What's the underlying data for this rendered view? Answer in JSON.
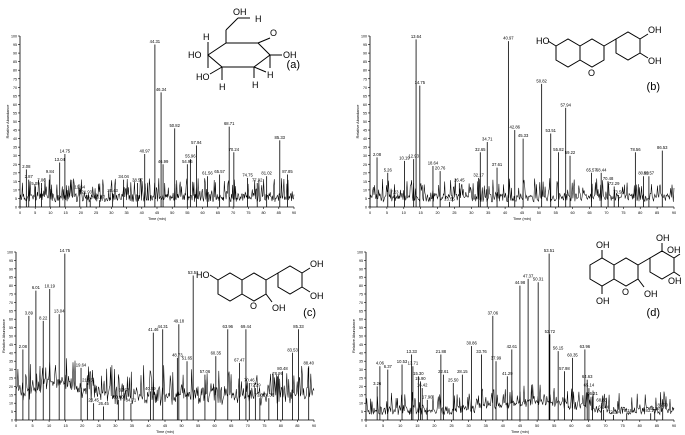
{
  "figure": {
    "panel_labels": [
      "(a)",
      "(b)",
      "(c)",
      "(d)"
    ],
    "ylabel": "Relative Abundance",
    "xlabel": "Time (min)"
  },
  "chart_data": [
    {
      "type": "line",
      "panel": "(a)",
      "xlabel": "Time (min)",
      "ylabel": "Relative Abundance",
      "xlim": [
        0,
        90
      ],
      "ylim": [
        0,
        100
      ],
      "xticks": [
        0,
        5,
        10,
        15,
        20,
        25,
        30,
        35,
        40,
        45,
        50,
        55,
        60,
        65,
        70,
        75,
        80,
        85,
        90
      ],
      "yticks": [
        0,
        5,
        10,
        15,
        20,
        25,
        30,
        35,
        40,
        45,
        50,
        55,
        60,
        65,
        70,
        75,
        80,
        85,
        90,
        95,
        100
      ],
      "peaks": [
        {
          "x": 2.08,
          "y": 22,
          "label": "2.08"
        },
        {
          "x": 2.87,
          "y": 16,
          "label": "2.87"
        },
        {
          "x": 5.09,
          "y": 12,
          "label": "5.09"
        },
        {
          "x": 7.06,
          "y": 14,
          "label": "7.06"
        },
        {
          "x": 9.84,
          "y": 19,
          "label": "9.84"
        },
        {
          "x": 13.04,
          "y": 26,
          "label": "13.04"
        },
        {
          "x": 14.75,
          "y": 31,
          "label": "14.75"
        },
        {
          "x": 19.64,
          "y": 10,
          "label": "19.64"
        },
        {
          "x": 21.93,
          "y": 7,
          "label": "21.93"
        },
        {
          "x": 23.06,
          "y": 4,
          "label": "23.06"
        },
        {
          "x": 26.17,
          "y": 4,
          "label": "26.17"
        },
        {
          "x": 30.43,
          "y": 8,
          "label": "30.43"
        },
        {
          "x": 34.04,
          "y": 16,
          "label": "34.04"
        },
        {
          "x": 38.57,
          "y": 14,
          "label": "38.57"
        },
        {
          "x": 40.97,
          "y": 31,
          "label": "40.97"
        },
        {
          "x": 44.31,
          "y": 95,
          "label": "44.31"
        },
        {
          "x": 46.34,
          "y": 67,
          "label": "46.34"
        },
        {
          "x": 46.99,
          "y": 25,
          "label": "46.99"
        },
        {
          "x": 50.82,
          "y": 46,
          "label": "50.82"
        },
        {
          "x": 54.96,
          "y": 25,
          "label": "54.96"
        },
        {
          "x": 55.96,
          "y": 28,
          "label": "55.96"
        },
        {
          "x": 57.94,
          "y": 36,
          "label": "57.94"
        },
        {
          "x": 61.56,
          "y": 18,
          "label": "61.56"
        },
        {
          "x": 65.57,
          "y": 19,
          "label": "65.57"
        },
        {
          "x": 68.71,
          "y": 47,
          "label": "68.71"
        },
        {
          "x": 70.24,
          "y": 32,
          "label": "70.24"
        },
        {
          "x": 74.75,
          "y": 17,
          "label": "74.75"
        },
        {
          "x": 77.92,
          "y": 14,
          "label": "77.92"
        },
        {
          "x": 81.02,
          "y": 18,
          "label": "81.02"
        },
        {
          "x": 85.33,
          "y": 39,
          "label": "85.33"
        },
        {
          "x": 87.85,
          "y": 19,
          "label": "87.85"
        }
      ]
    },
    {
      "type": "line",
      "panel": "(b)",
      "xlabel": "Time (min)",
      "ylabel": "Relative Abundance",
      "xlim": [
        0,
        90
      ],
      "ylim": [
        0,
        100
      ],
      "xticks": [
        0,
        5,
        10,
        15,
        20,
        25,
        30,
        35,
        40,
        45,
        50,
        55,
        60,
        65,
        70,
        75,
        80,
        85,
        90
      ],
      "yticks": [
        0,
        5,
        10,
        15,
        20,
        25,
        30,
        35,
        40,
        45,
        50,
        55,
        60,
        65,
        70,
        75,
        80,
        85,
        90,
        95,
        100
      ],
      "peaks": [
        {
          "x": 2.08,
          "y": 29,
          "label": "2.08"
        },
        {
          "x": 5.26,
          "y": 20,
          "label": "5.26"
        },
        {
          "x": 7.23,
          "y": 7,
          "label": "7.23"
        },
        {
          "x": 10.19,
          "y": 27,
          "label": "10.19"
        },
        {
          "x": 12.93,
          "y": 28,
          "label": "12.93"
        },
        {
          "x": 13.64,
          "y": 98,
          "label": "13.64"
        },
        {
          "x": 14.75,
          "y": 71,
          "label": "14.75"
        },
        {
          "x": 18.64,
          "y": 24,
          "label": "18.64"
        },
        {
          "x": 20.76,
          "y": 21,
          "label": "20.76"
        },
        {
          "x": 23.55,
          "y": 3,
          "label": "23.55"
        },
        {
          "x": 26.45,
          "y": 14,
          "label": "26.45"
        },
        {
          "x": 32.17,
          "y": 17,
          "label": "32.17"
        },
        {
          "x": 32.65,
          "y": 32,
          "label": "32.65"
        },
        {
          "x": 34.71,
          "y": 38,
          "label": "34.71"
        },
        {
          "x": 37.61,
          "y": 23,
          "label": "37.61"
        },
        {
          "x": 40.97,
          "y": 97,
          "label": "40.97"
        },
        {
          "x": 42.86,
          "y": 45,
          "label": "42.86"
        },
        {
          "x": 45.33,
          "y": 40,
          "label": "45.33"
        },
        {
          "x": 50.82,
          "y": 72,
          "label": "50.82"
        },
        {
          "x": 53.51,
          "y": 43,
          "label": "53.51"
        },
        {
          "x": 55.82,
          "y": 32,
          "label": "55.82"
        },
        {
          "x": 57.94,
          "y": 58,
          "label": "57.94"
        },
        {
          "x": 59.22,
          "y": 30,
          "label": "59.22"
        },
        {
          "x": 65.57,
          "y": 20,
          "label": "65.57"
        },
        {
          "x": 68.44,
          "y": 20,
          "label": "68.44"
        },
        {
          "x": 70.48,
          "y": 15,
          "label": "70.48"
        },
        {
          "x": 72.29,
          "y": 12,
          "label": "72.29"
        },
        {
          "x": 73.56,
          "y": 7,
          "label": "73.56"
        },
        {
          "x": 78.56,
          "y": 32,
          "label": "78.56"
        },
        {
          "x": 80.99,
          "y": 18,
          "label": "80.99"
        },
        {
          "x": 82.57,
          "y": 18,
          "label": "82.57"
        },
        {
          "x": 86.53,
          "y": 33,
          "label": "86.53"
        }
      ]
    },
    {
      "type": "line",
      "panel": "(c)",
      "xlabel": "Time (min)",
      "ylabel": "Relative Abundance",
      "xlim": [
        0,
        90
      ],
      "ylim": [
        0,
        100
      ],
      "xticks": [
        0,
        5,
        10,
        15,
        20,
        25,
        30,
        35,
        40,
        45,
        50,
        55,
        60,
        65,
        70,
        75,
        80,
        85,
        90
      ],
      "yticks": [
        0,
        5,
        10,
        15,
        20,
        25,
        30,
        35,
        40,
        45,
        50,
        55,
        60,
        65,
        70,
        75,
        80,
        85,
        90,
        95,
        100
      ],
      "peaks": [
        {
          "x": 2.08,
          "y": 42,
          "label": "2.08"
        },
        {
          "x": 3.89,
          "y": 62,
          "label": "3.89"
        },
        {
          "x": 6.01,
          "y": 77,
          "label": "6.01"
        },
        {
          "x": 8.22,
          "y": 59,
          "label": "8.22"
        },
        {
          "x": 10.19,
          "y": 78,
          "label": "10.19"
        },
        {
          "x": 13.04,
          "y": 63,
          "label": "13.04"
        },
        {
          "x": 14.75,
          "y": 99,
          "label": "14.75"
        },
        {
          "x": 19.64,
          "y": 31,
          "label": "19.64"
        },
        {
          "x": 21.55,
          "y": 22,
          "label": "21.55"
        },
        {
          "x": 23.45,
          "y": 10,
          "label": "23.45"
        },
        {
          "x": 26.45,
          "y": 8,
          "label": "26.45"
        },
        {
          "x": 30.9,
          "y": 12,
          "label": "30.90"
        },
        {
          "x": 32.57,
          "y": 16,
          "label": "32.57"
        },
        {
          "x": 34.71,
          "y": 10,
          "label": "34.71"
        },
        {
          "x": 40.59,
          "y": 17,
          "label": "40.59"
        },
        {
          "x": 41.46,
          "y": 52,
          "label": "41.46"
        },
        {
          "x": 44.31,
          "y": 54,
          "label": "44.31"
        },
        {
          "x": 48.73,
          "y": 37,
          "label": "48.73"
        },
        {
          "x": 49.18,
          "y": 57,
          "label": "49.18"
        },
        {
          "x": 51.65,
          "y": 35,
          "label": "51.65"
        },
        {
          "x": 53.51,
          "y": 86,
          "label": "53.51"
        },
        {
          "x": 57.06,
          "y": 27,
          "label": "57.06"
        },
        {
          "x": 60.35,
          "y": 38,
          "label": "60.35"
        },
        {
          "x": 63.96,
          "y": 54,
          "label": "63.96"
        },
        {
          "x": 67.47,
          "y": 34,
          "label": "67.47"
        },
        {
          "x": 69.44,
          "y": 54,
          "label": "69.44"
        },
        {
          "x": 70.46,
          "y": 22,
          "label": "70.46"
        },
        {
          "x": 72.29,
          "y": 19,
          "label": "72.29"
        },
        {
          "x": 73.65,
          "y": 13,
          "label": "73.65"
        },
        {
          "x": 76.36,
          "y": 13,
          "label": "76.36"
        },
        {
          "x": 78.99,
          "y": 26,
          "label": "78.99"
        },
        {
          "x": 80.48,
          "y": 29,
          "label": "80.48"
        },
        {
          "x": 83.53,
          "y": 40,
          "label": "83.53"
        },
        {
          "x": 85.33,
          "y": 54,
          "label": "85.33"
        },
        {
          "x": 88.4,
          "y": 32,
          "label": "88.40"
        }
      ]
    },
    {
      "type": "line",
      "panel": "(d)",
      "xlabel": "Time (min)",
      "ylabel": "Relative Abundance",
      "xlim": [
        0,
        90
      ],
      "ylim": [
        0,
        100
      ],
      "xticks": [
        0,
        5,
        10,
        15,
        20,
        25,
        30,
        35,
        40,
        45,
        50,
        55,
        60,
        65,
        70,
        75,
        80,
        85,
        90
      ],
      "yticks": [
        0,
        5,
        10,
        15,
        20,
        25,
        30,
        35,
        40,
        45,
        50,
        55,
        60,
        65,
        70,
        75,
        80,
        85,
        90,
        95,
        100
      ],
      "peaks": [
        {
          "x": 3.26,
          "y": 20,
          "label": "3.26"
        },
        {
          "x": 4.06,
          "y": 32,
          "label": "4.06"
        },
        {
          "x": 6.37,
          "y": 30,
          "label": "6.37"
        },
        {
          "x": 10.53,
          "y": 33,
          "label": "10.53"
        },
        {
          "x": 13.33,
          "y": 39,
          "label": "13.33"
        },
        {
          "x": 13.71,
          "y": 32,
          "label": "13.71"
        },
        {
          "x": 15.3,
          "y": 26,
          "label": "15.30"
        },
        {
          "x": 15.9,
          "y": 23,
          "label": "15.90"
        },
        {
          "x": 16.42,
          "y": 19,
          "label": "16.42"
        },
        {
          "x": 17.9,
          "y": 12,
          "label": "17.90"
        },
        {
          "x": 21.88,
          "y": 39,
          "label": "21.88"
        },
        {
          "x": 22.61,
          "y": 27,
          "label": "22.61"
        },
        {
          "x": 25.5,
          "y": 22,
          "label": "25.50"
        },
        {
          "x": 28.15,
          "y": 27,
          "label": "28.15"
        },
        {
          "x": 30.86,
          "y": 44,
          "label": "30.86"
        },
        {
          "x": 33.76,
          "y": 39,
          "label": "33.76"
        },
        {
          "x": 37.06,
          "y": 62,
          "label": "37.06"
        },
        {
          "x": 37.99,
          "y": 35,
          "label": "37.99"
        },
        {
          "x": 41.29,
          "y": 26,
          "label": "41.29"
        },
        {
          "x": 42.61,
          "y": 42,
          "label": "42.61"
        },
        {
          "x": 44.98,
          "y": 80,
          "label": "44.98"
        },
        {
          "x": 47.37,
          "y": 84,
          "label": "47.37"
        },
        {
          "x": 50.31,
          "y": 82,
          "label": "50.31"
        },
        {
          "x": 53.51,
          "y": 99,
          "label": "53.51"
        },
        {
          "x": 53.72,
          "y": 51,
          "label": "53.72"
        },
        {
          "x": 56.15,
          "y": 41,
          "label": "56.15"
        },
        {
          "x": 57.98,
          "y": 29,
          "label": "57.98"
        },
        {
          "x": 60.35,
          "y": 37,
          "label": "60.35"
        },
        {
          "x": 63.96,
          "y": 42,
          "label": "63.96"
        },
        {
          "x": 64.63,
          "y": 24,
          "label": "64.63"
        },
        {
          "x": 65.14,
          "y": 19,
          "label": "65.14"
        },
        {
          "x": 66.21,
          "y": 14,
          "label": "66.21"
        },
        {
          "x": 68.85,
          "y": 10,
          "label": "68.85"
        },
        {
          "x": 69.44,
          "y": 6,
          "label": "69.44"
        },
        {
          "x": 72.29,
          "y": 3,
          "label": "72.29"
        },
        {
          "x": 76.18,
          "y": 4,
          "label": "76.18"
        },
        {
          "x": 83.19,
          "y": 4,
          "label": "83.19"
        },
        {
          "x": 84.37,
          "y": 5,
          "label": "84.37"
        },
        {
          "x": 86.7,
          "y": 7,
          "label": "86.70"
        }
      ]
    }
  ]
}
